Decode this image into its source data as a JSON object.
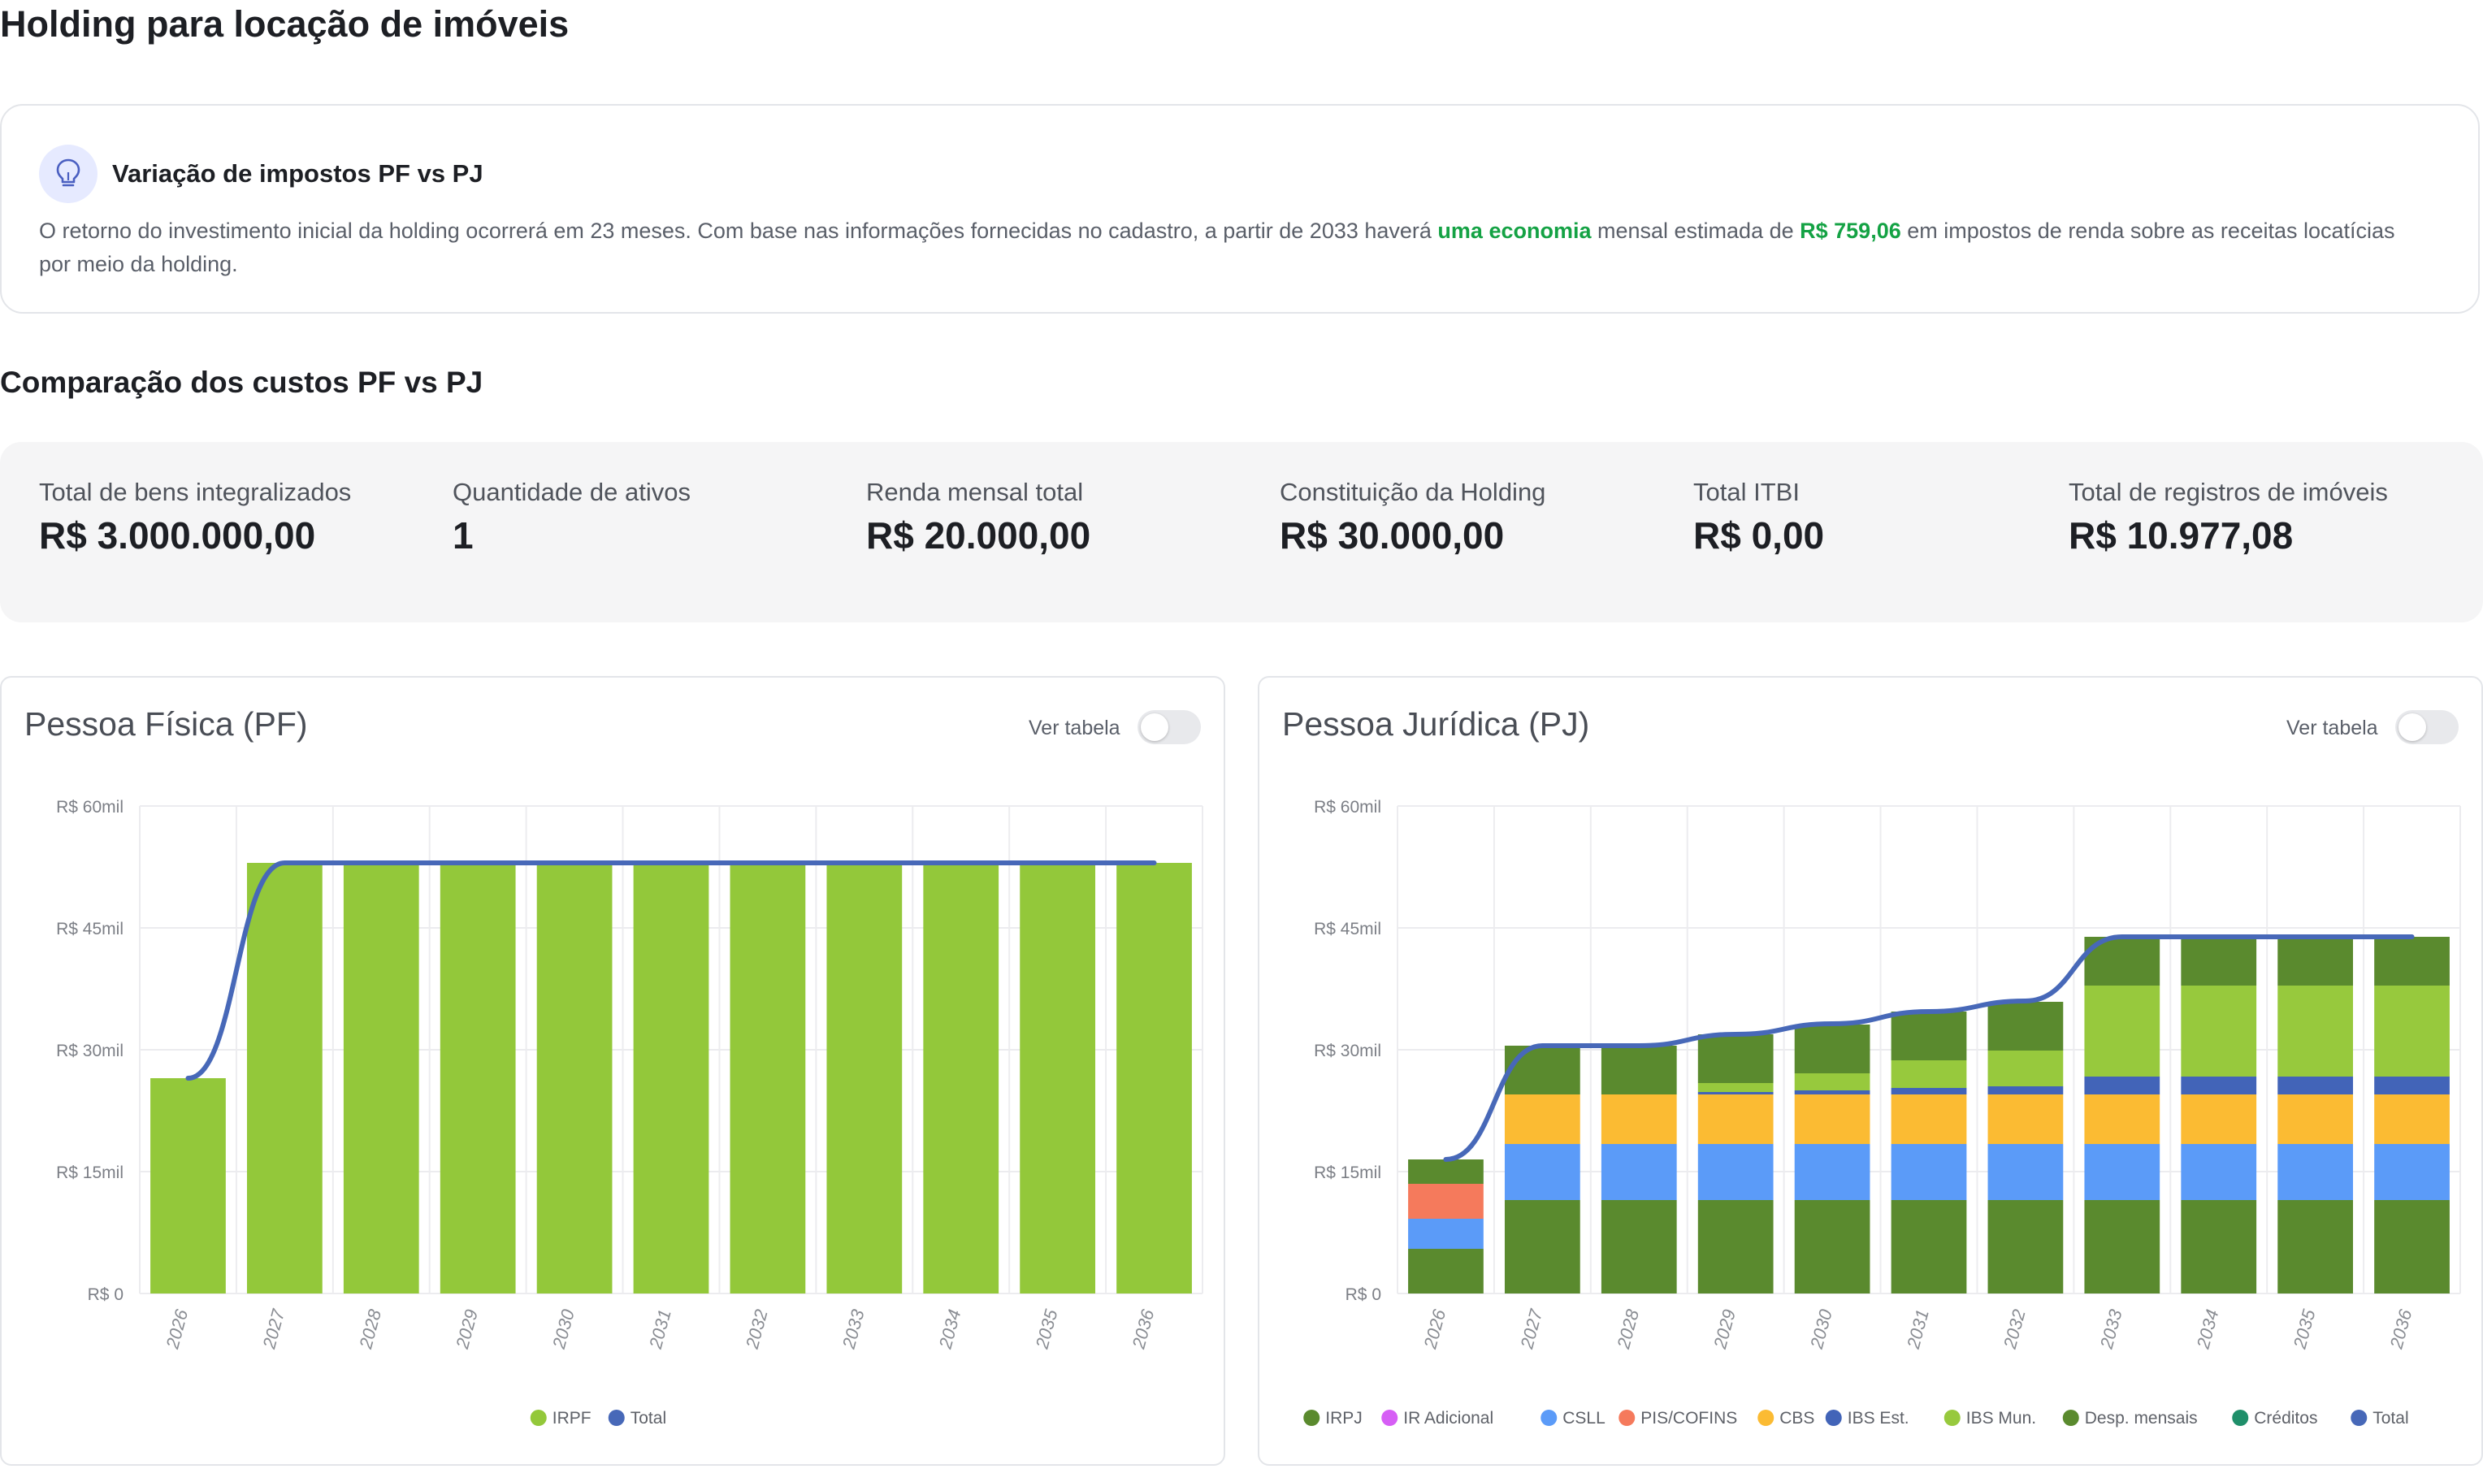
{
  "page": {
    "title": "Holding para locação de imóveis"
  },
  "info": {
    "title": "Variação de impostos PF vs PJ",
    "text_1": "O retorno do investimento inicial da holding ocorrerá em 23 meses. Com base nas informações fornecidas no cadastro, a partir de 2033 haverá ",
    "highlight_1": "uma economia",
    "text_2": " mensal estimada de ",
    "highlight_2": "R$ 759,06",
    "text_3": " em impostos de renda sobre as receitas locatícias por meio da holding.",
    "icon": "lightbulb-icon"
  },
  "section": {
    "title": "Comparação dos custos PF vs PJ"
  },
  "stats": [
    {
      "label": "Total de bens integralizados",
      "value": "R$ 3.000.000,00"
    },
    {
      "label": "Quantidade de ativos",
      "value": "1"
    },
    {
      "label": "Renda mensal total",
      "value": "R$ 20.000,00"
    },
    {
      "label": "Constituição da Holding",
      "value": "R$ 30.000,00"
    },
    {
      "label": "Total ITBI",
      "value": "R$ 0,00"
    },
    {
      "label": "Total de registros de imóveis",
      "value": "R$ 10.977,08"
    }
  ],
  "toggle_label": "Ver tabela",
  "colors": {
    "irpj": "#5a8a2e",
    "ir_adicional": "#d65ef5",
    "csll": "#5b9bf8",
    "pis_cofins": "#f57a5c",
    "cbs": "#fbbb33",
    "ibs_est": "#4264b8",
    "ibs_mun": "#97c93d",
    "desp_mensais": "#5a8a2e",
    "creditos": "#1f8f6a",
    "total": "#4768b8",
    "irpf": "#93c83a",
    "accent_green": "#14a244"
  },
  "chart_data": [
    {
      "type": "bar",
      "title": "Pessoa Física (PF)",
      "categories": [
        "2026",
        "2027",
        "2028",
        "2029",
        "2030",
        "2031",
        "2032",
        "2033",
        "2034",
        "2035",
        "2036"
      ],
      "y_ticks": [
        "R$ 0",
        "R$ 15mil",
        "R$ 30mil",
        "R$ 45mil",
        "R$ 60mil"
      ],
      "ylim": [
        0,
        60000
      ],
      "stacked": true,
      "series": [
        {
          "name": "IRPF",
          "kind": "bar",
          "color": "#93c83a",
          "values": [
            26500,
            53000,
            53000,
            53000,
            53000,
            53000,
            53000,
            53000,
            53000,
            53000,
            53000
          ]
        },
        {
          "name": "Total",
          "kind": "line",
          "color": "#4768b8",
          "values": [
            26500,
            53000,
            53000,
            53000,
            53000,
            53000,
            53000,
            53000,
            53000,
            53000,
            53000
          ]
        }
      ],
      "legend": "bottom"
    },
    {
      "type": "bar",
      "title": "Pessoa Jurídica (PJ)",
      "categories": [
        "2026",
        "2027",
        "2028",
        "2029",
        "2030",
        "2031",
        "2032",
        "2033",
        "2034",
        "2035",
        "2036"
      ],
      "y_ticks": [
        "R$ 0",
        "R$ 15mil",
        "R$ 30mil",
        "R$ 45mil",
        "R$ 60mil"
      ],
      "ylim": [
        0,
        60000
      ],
      "stacked": true,
      "series": [
        {
          "name": "IRPJ",
          "kind": "bar",
          "color": "#5a8a2e",
          "values": [
            5500,
            11500,
            11500,
            11500,
            11500,
            11500,
            11500,
            11500,
            11500,
            11500,
            11500
          ]
        },
        {
          "name": "IR Adicional",
          "kind": "bar",
          "color": "#d65ef5",
          "values": [
            0,
            0,
            0,
            0,
            0,
            0,
            0,
            0,
            0,
            0,
            0
          ]
        },
        {
          "name": "CSLL",
          "kind": "bar",
          "color": "#5b9bf8",
          "values": [
            3700,
            6900,
            6900,
            6900,
            6900,
            6900,
            6900,
            6900,
            6900,
            6900,
            6900
          ]
        },
        {
          "name": "PIS/COFINS",
          "kind": "bar",
          "color": "#f57a5c",
          "values": [
            4300,
            0,
            0,
            0,
            0,
            0,
            0,
            0,
            0,
            0,
            0
          ]
        },
        {
          "name": "CBS",
          "kind": "bar",
          "color": "#fbbb33",
          "values": [
            0,
            6100,
            6100,
            6100,
            6100,
            6100,
            6100,
            6100,
            6100,
            6100,
            6100
          ]
        },
        {
          "name": "IBS Est.",
          "kind": "bar",
          "color": "#4264b8",
          "values": [
            0,
            0,
            0,
            300,
            500,
            800,
            1000,
            2200,
            2200,
            2200,
            2200
          ]
        },
        {
          "name": "IBS Mun.",
          "kind": "bar",
          "color": "#97c93d",
          "values": [
            0,
            0,
            0,
            1100,
            2100,
            3400,
            4400,
            11200,
            11200,
            11200,
            11200
          ]
        },
        {
          "name": "Desp. mensais",
          "kind": "bar",
          "color": "#5a8a2e",
          "values": [
            3000,
            6000,
            6000,
            6000,
            6000,
            6000,
            6000,
            6000,
            6000,
            6000,
            6000
          ]
        },
        {
          "name": "Créditos",
          "kind": "bar",
          "color": "#1f8f6a",
          "values": [
            0,
            0,
            0,
            0,
            0,
            0,
            0,
            0,
            0,
            0,
            0
          ]
        },
        {
          "name": "Total",
          "kind": "line",
          "color": "#4768b8",
          "values": [
            16500,
            30500,
            30500,
            31900,
            33200,
            34700,
            36000,
            43900,
            43900,
            43900,
            43900
          ]
        }
      ],
      "legend": "bottom"
    }
  ]
}
